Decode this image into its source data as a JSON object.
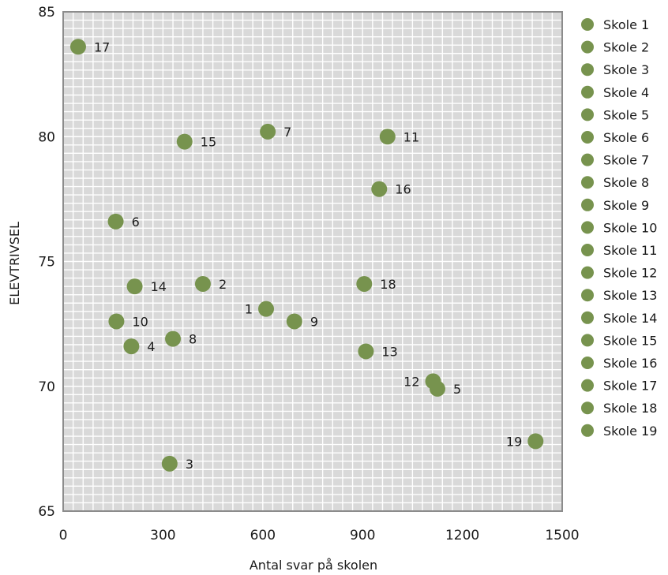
{
  "chart_data": {
    "type": "scatter",
    "xlabel": "Antal svar på skolen",
    "ylabel": "ELEVTRIVSEL",
    "xlim": [
      0,
      1500
    ],
    "ylim": [
      65,
      85
    ],
    "x_ticks": [
      "0",
      "300",
      "600",
      "900",
      "1200",
      "1500"
    ],
    "y_ticks": [
      "65",
      "70",
      "75",
      "80",
      "85"
    ],
    "grid": true,
    "legend_position": "right",
    "marker_color": "#77934e",
    "plot_background": "#d9d9d9",
    "series": [
      {
        "name": "Skole 1",
        "label": "1",
        "x": 610,
        "y": 73.1,
        "label_side": "left"
      },
      {
        "name": "Skole 2",
        "label": "2",
        "x": 420,
        "y": 74.1,
        "label_side": "right"
      },
      {
        "name": "Skole 3",
        "label": "3",
        "x": 320,
        "y": 66.9,
        "label_side": "right"
      },
      {
        "name": "Skole 4",
        "label": "4",
        "x": 205,
        "y": 71.6,
        "label_side": "right"
      },
      {
        "name": "Skole 5",
        "label": "5",
        "x": 1125,
        "y": 69.9,
        "label_side": "right"
      },
      {
        "name": "Skole 6",
        "label": "6",
        "x": 158,
        "y": 76.6,
        "label_side": "right"
      },
      {
        "name": "Skole 7",
        "label": "7",
        "x": 615,
        "y": 80.2,
        "label_side": "right"
      },
      {
        "name": "Skole 8",
        "label": "8",
        "x": 330,
        "y": 71.9,
        "label_side": "right"
      },
      {
        "name": "Skole 9",
        "label": "9",
        "x": 695,
        "y": 72.6,
        "label_side": "right"
      },
      {
        "name": "Skole 10",
        "label": "10",
        "x": 160,
        "y": 72.6,
        "label_side": "right"
      },
      {
        "name": "Skole 11",
        "label": "11",
        "x": 975,
        "y": 80.0,
        "label_side": "right"
      },
      {
        "name": "Skole 12",
        "label": "12",
        "x": 1112,
        "y": 70.2,
        "label_side": "left"
      },
      {
        "name": "Skole 13",
        "label": "13",
        "x": 910,
        "y": 71.4,
        "label_side": "right"
      },
      {
        "name": "Skole 14",
        "label": "14",
        "x": 215,
        "y": 74.0,
        "label_side": "right"
      },
      {
        "name": "Skole 15",
        "label": "15",
        "x": 365,
        "y": 79.8,
        "label_side": "right"
      },
      {
        "name": "Skole 16",
        "label": "16",
        "x": 950,
        "y": 77.9,
        "label_side": "right"
      },
      {
        "name": "Skole 17",
        "label": "17",
        "x": 45,
        "y": 83.6,
        "label_side": "right"
      },
      {
        "name": "Skole 18",
        "label": "18",
        "x": 905,
        "y": 74.1,
        "label_side": "right"
      },
      {
        "name": "Skole 19",
        "label": "19",
        "x": 1420,
        "y": 67.8,
        "label_side": "left"
      }
    ]
  }
}
